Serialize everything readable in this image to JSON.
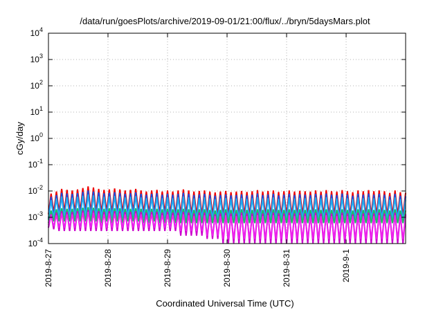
{
  "chart_data": {
    "type": "line",
    "title": "/data/run/goesPlots/archive/2019-09-01/21:00/flux/../bryn/5daysMars.plot",
    "xlabel": "Coordinated Universal Time (UTC)",
    "ylabel": "cGy/day",
    "y_scale": "log",
    "ylim": [
      0.0001,
      10000
    ],
    "y_ticks": [
      {
        "value": 0.0001,
        "base": "10",
        "exp": "-4"
      },
      {
        "value": 0.001,
        "base": "10",
        "exp": "-3"
      },
      {
        "value": 0.01,
        "base": "10",
        "exp": "-2"
      },
      {
        "value": 0.1,
        "base": "10",
        "exp": "-1"
      },
      {
        "value": 1,
        "base": "10",
        "exp": "0"
      },
      {
        "value": 10,
        "base": "10",
        "exp": "1"
      },
      {
        "value": 100,
        "base": "10",
        "exp": "2"
      },
      {
        "value": 1000,
        "base": "10",
        "exp": "3"
      },
      {
        "value": 10000,
        "base": "10",
        "exp": "4"
      }
    ],
    "xlim": [
      "2019-08-27T00:00",
      "2019-09-01T23:59"
    ],
    "x_ticks": [
      "2019-8-27",
      "2019-8-28",
      "2019-8-29",
      "2019-8-30",
      "2019-8-31",
      "2019-9-1"
    ],
    "grid": true,
    "legend": "none",
    "series_colors": [
      "#ee0000",
      "#1a4fe0",
      "#22aaee",
      "#22bb66",
      "#cc00cc",
      "#ee22ee"
    ],
    "series": [
      {
        "color": "#ee0000",
        "values": [
          0.0013,
          0.008,
          0.0015,
          0.0095,
          0.0016,
          0.012,
          0.0016,
          0.011,
          0.0017,
          0.0105,
          0.0016,
          0.0115,
          0.0017,
          0.013,
          0.0017,
          0.015,
          0.0016,
          0.0135,
          0.0016,
          0.012,
          0.0015,
          0.011,
          0.0016,
          0.0115,
          0.0015,
          0.0125,
          0.0016,
          0.0115,
          0.0015,
          0.0105,
          0.0016,
          0.011,
          0.0017,
          0.012,
          0.0016,
          0.0105,
          0.0015,
          0.0095,
          0.0015,
          0.0105,
          0.0016,
          0.011,
          0.0014,
          0.0095,
          0.0015,
          0.0105,
          0.0014,
          0.0095,
          0.0013,
          0.0105,
          0.0013,
          0.0115,
          0.0013,
          0.0105,
          0.0013,
          0.0095,
          0.0012,
          0.01,
          0.0012,
          0.0105,
          0.0012,
          0.0095,
          0.0012,
          0.0088,
          0.0012,
          0.0095,
          0.0012,
          0.01,
          0.0012,
          0.009,
          0.0012,
          0.0095,
          0.0012,
          0.01,
          0.0012,
          0.0092,
          0.0012,
          0.0098,
          0.0012,
          0.0108,
          0.0012,
          0.0095,
          0.0012,
          0.01,
          0.0012,
          0.0105,
          0.0012,
          0.0092,
          0.0012,
          0.0098,
          0.0012,
          0.0105,
          0.0012,
          0.0095,
          0.0012,
          0.0102,
          0.0012,
          0.0098,
          0.0012,
          0.0095,
          0.0012,
          0.0105,
          0.0012,
          0.0095,
          0.0012,
          0.0108,
          0.0012,
          0.0098,
          0.0012,
          0.0095,
          0.0012,
          0.0108,
          0.0012,
          0.0098,
          0.0012,
          0.009,
          0.0012,
          0.0105,
          0.0012,
          0.0098,
          0.0012,
          0.0108,
          0.0012,
          0.0098,
          0.0012,
          0.0105,
          0.0012,
          0.0098,
          0.0012,
          0.0085,
          0.0012,
          0.0105,
          0.0012,
          0.009,
          0.0011,
          0.0085
        ]
      },
      {
        "color": "#1a4fe0",
        "values": [
          0.0009,
          0.006,
          0.001,
          0.007,
          0.0011,
          0.0085,
          0.0011,
          0.008,
          0.0012,
          0.0078,
          0.0011,
          0.0082,
          0.0012,
          0.0092,
          0.0012,
          0.0105,
          0.0011,
          0.0095,
          0.0011,
          0.0088,
          0.001,
          0.0082,
          0.0011,
          0.0085,
          0.001,
          0.009,
          0.0011,
          0.0085,
          0.001,
          0.0078,
          0.0011,
          0.0082,
          0.0012,
          0.0088,
          0.0011,
          0.0078,
          0.001,
          0.0072,
          0.001,
          0.0078,
          0.0011,
          0.0082,
          0.001,
          0.0072,
          0.001,
          0.0078,
          0.001,
          0.0072,
          0.0009,
          0.0078,
          0.0009,
          0.0085,
          0.0009,
          0.0078,
          0.0009,
          0.007,
          0.0008,
          0.0074,
          0.0008,
          0.0078,
          0.0008,
          0.007,
          0.0008,
          0.0066,
          0.0008,
          0.007,
          0.0008,
          0.0074,
          0.0008,
          0.0068,
          0.0008,
          0.007,
          0.0008,
          0.0074,
          0.0008,
          0.0068,
          0.0008,
          0.0072,
          0.0008,
          0.008,
          0.0008,
          0.007,
          0.0008,
          0.0074,
          0.0008,
          0.0078,
          0.0008,
          0.0068,
          0.0008,
          0.0072,
          0.0008,
          0.0078,
          0.0008,
          0.007,
          0.0008,
          0.0075,
          0.0008,
          0.0072,
          0.0008,
          0.007,
          0.0008,
          0.0078,
          0.0008,
          0.007,
          0.0008,
          0.008,
          0.0008,
          0.0072,
          0.0008,
          0.007,
          0.0008,
          0.008,
          0.0008,
          0.0072,
          0.0008,
          0.0066,
          0.0008,
          0.0078,
          0.0008,
          0.0072,
          0.0008,
          0.008,
          0.0008,
          0.0072,
          0.0008,
          0.0078,
          0.0008,
          0.0072,
          0.0008,
          0.0063,
          0.0008,
          0.0078,
          0.0008,
          0.0066,
          0.0007,
          0.0063
        ]
      },
      {
        "color": "#22aaee",
        "values": [
          0.0008,
          0.0045,
          0.0009,
          0.0052,
          0.001,
          0.0062,
          0.001,
          0.0058,
          0.001,
          0.0056,
          0.001,
          0.006,
          0.001,
          0.0066,
          0.001,
          0.0074,
          0.001,
          0.0068,
          0.001,
          0.0063,
          0.0009,
          0.006,
          0.001,
          0.0062,
          0.0009,
          0.0065,
          0.001,
          0.0062,
          0.0009,
          0.0057,
          0.001,
          0.006,
          0.001,
          0.0064,
          0.001,
          0.0057,
          0.0009,
          0.0053,
          0.0009,
          0.0057,
          0.001,
          0.006,
          0.0009,
          0.0053,
          0.0009,
          0.0057,
          0.0009,
          0.0053,
          0.0008,
          0.0057,
          0.0008,
          0.0062,
          0.0008,
          0.0057,
          0.0008,
          0.0052,
          0.0008,
          0.0054,
          0.0008,
          0.0057,
          0.0008,
          0.0052,
          0.0008,
          0.0049,
          0.0008,
          0.0052,
          0.0008,
          0.0054,
          0.0008,
          0.005,
          0.0008,
          0.0052,
          0.0008,
          0.0054,
          0.0008,
          0.005,
          0.0008,
          0.0053,
          0.0008,
          0.0058,
          0.0008,
          0.0052,
          0.0008,
          0.0054,
          0.0008,
          0.0057,
          0.0008,
          0.005,
          0.0008,
          0.0053,
          0.0008,
          0.0057,
          0.0008,
          0.0052,
          0.0008,
          0.0055,
          0.0008,
          0.0053,
          0.0008,
          0.0052,
          0.0008,
          0.0057,
          0.0008,
          0.0052,
          0.0008,
          0.0058,
          0.0008,
          0.0053,
          0.0008,
          0.0052,
          0.0008,
          0.0058,
          0.0008,
          0.0053,
          0.0008,
          0.0049,
          0.0008,
          0.0057,
          0.0008,
          0.0053,
          0.0008,
          0.0058,
          0.0008,
          0.0053,
          0.0008,
          0.0057,
          0.0008,
          0.0053,
          0.0008,
          0.0047,
          0.0008,
          0.0057,
          0.0008,
          0.0049,
          0.0007,
          0.0047
        ]
      },
      {
        "color": "#22bb66",
        "values": [
          0.0006,
          0.0018,
          0.0007,
          0.002,
          0.0007,
          0.0022,
          0.0007,
          0.0021,
          0.0007,
          0.0021,
          0.0007,
          0.0022,
          0.0007,
          0.0023,
          0.0007,
          0.0024,
          0.0007,
          0.0023,
          0.0007,
          0.0022,
          0.0006,
          0.0021,
          0.0007,
          0.0022,
          0.0006,
          0.0022,
          0.0007,
          0.0022,
          0.0006,
          0.0021,
          0.0007,
          0.0021,
          0.0007,
          0.0022,
          0.0007,
          0.0021,
          0.0006,
          0.002,
          0.0006,
          0.0021,
          0.0007,
          0.0021,
          0.0006,
          0.002,
          0.0006,
          0.0021,
          0.0006,
          0.002,
          0.0006,
          0.002,
          0.0006,
          0.0021,
          0.0006,
          0.002,
          0.0006,
          0.0019,
          0.0006,
          0.002,
          0.0006,
          0.002,
          0.0006,
          0.0019,
          0.0006,
          0.0018,
          0.0006,
          0.0019,
          0.0006,
          0.002,
          0.0006,
          0.0019,
          0.0006,
          0.0019,
          0.0006,
          0.002,
          0.0006,
          0.0019,
          0.0006,
          0.0019,
          0.0006,
          0.002,
          0.0006,
          0.0019,
          0.0006,
          0.002,
          0.0006,
          0.002,
          0.0006,
          0.0019,
          0.0006,
          0.0019,
          0.0006,
          0.002,
          0.0006,
          0.0019,
          0.0006,
          0.002,
          0.0006,
          0.0019,
          0.0006,
          0.0019,
          0.0006,
          0.002,
          0.0006,
          0.0019,
          0.0006,
          0.002,
          0.0006,
          0.0019,
          0.0006,
          0.0019,
          0.0006,
          0.002,
          0.0006,
          0.0019,
          0.0006,
          0.0018,
          0.0006,
          0.002,
          0.0006,
          0.0019,
          0.0006,
          0.002,
          0.0006,
          0.0019,
          0.0006,
          0.002,
          0.0006,
          0.0019,
          0.0006,
          0.0018,
          0.0006,
          0.002,
          0.0006,
          0.0018,
          0.0006,
          0.0018
        ]
      },
      {
        "color": "#cc00cc",
        "values": [
          0.0004,
          0.0013,
          0.00035,
          0.0015,
          0.0003,
          0.0017,
          0.0003,
          0.0016,
          0.0003,
          0.0016,
          0.0003,
          0.0017,
          0.0003,
          0.0018,
          0.0003,
          0.0019,
          0.0003,
          0.0018,
          0.0003,
          0.0017,
          0.0003,
          0.0016,
          0.0003,
          0.0017,
          0.0003,
          0.0017,
          0.0003,
          0.0017,
          0.0003,
          0.0016,
          0.0003,
          0.0016,
          0.0003,
          0.0017,
          0.0003,
          0.0016,
          0.0003,
          0.0015,
          0.0003,
          0.0016,
          0.0003,
          0.0016,
          0.0003,
          0.0015,
          0.0003,
          0.0016,
          0.0003,
          0.0015,
          0.0003,
          0.0015,
          0.0002,
          0.0016,
          0.0002,
          0.0015,
          0.0002,
          0.0014,
          0.0002,
          0.0015,
          0.0002,
          0.0015,
          0.00015,
          0.0014,
          0.00015,
          0.0013,
          0.00015,
          0.0014,
          0.0001,
          0.0015,
          0.0001,
          0.0014,
          0.0001,
          0.0014,
          0.0001,
          0.0015,
          0.0001,
          0.0014,
          0.0001,
          0.0014,
          0.0001,
          0.0015,
          0.0001,
          0.0014,
          0.0001,
          0.0015,
          0.0001,
          0.0015,
          0.0001,
          0.0014,
          0.0001,
          0.0014,
          0.0001,
          0.0015,
          0.0001,
          0.0014,
          0.0001,
          0.0015,
          0.0001,
          0.0014,
          0.0001,
          0.0014,
          0.0001,
          0.0015,
          0.0001,
          0.0014,
          0.0001,
          0.0015,
          0.0001,
          0.0014,
          0.0001,
          0.0014,
          0.0001,
          0.0015,
          0.0001,
          0.0014,
          0.0001,
          0.0013,
          0.0001,
          0.0015,
          0.0001,
          0.0014,
          0.0001,
          0.0015,
          0.0001,
          0.0014,
          0.0001,
          0.0015,
          0.0001,
          0.0014,
          0.0001,
          0.0013,
          0.0001,
          0.0015,
          0.0001,
          0.0013,
          0.0001,
          0.0013
        ]
      },
      {
        "color": "#ee22ee",
        "values": [
          0.0005,
          0.0011,
          0.00045,
          0.0012,
          0.0004,
          0.0014,
          0.0004,
          0.0013,
          0.0004,
          0.0013,
          0.0004,
          0.0014,
          0.0004,
          0.0015,
          0.0004,
          0.0016,
          0.0004,
          0.0015,
          0.0004,
          0.0014,
          0.0004,
          0.0013,
          0.0004,
          0.0014,
          0.0004,
          0.0014,
          0.0004,
          0.0014,
          0.0004,
          0.0013,
          0.0004,
          0.0013,
          0.0004,
          0.0014,
          0.0004,
          0.0013,
          0.0004,
          0.0012,
          0.0004,
          0.0013,
          0.0004,
          0.0013,
          0.0004,
          0.0012,
          0.0004,
          0.0013,
          0.0004,
          0.0012,
          0.0004,
          0.0012,
          0.0003,
          0.0013,
          0.0003,
          0.0012,
          0.0003,
          0.0011,
          0.0003,
          0.0012,
          0.0003,
          0.0012,
          0.0002,
          0.0011,
          0.0002,
          0.0011,
          0.0002,
          0.0011,
          0.00015,
          0.0012,
          0.00015,
          0.0011,
          0.00015,
          0.0011,
          0.00015,
          0.0012,
          0.00015,
          0.0011,
          0.00015,
          0.0011,
          0.00015,
          0.0012,
          0.00015,
          0.0011,
          0.00015,
          0.0012,
          0.00015,
          0.0012,
          0.00015,
          0.0011,
          0.00015,
          0.0011,
          0.00015,
          0.0012,
          0.00015,
          0.0011,
          0.00015,
          0.0012,
          0.00015,
          0.0011,
          0.00015,
          0.0011,
          0.00015,
          0.0012,
          0.00015,
          0.0011,
          0.00015,
          0.0012,
          0.00015,
          0.0011,
          0.00015,
          0.0011,
          0.00015,
          0.0012,
          0.00015,
          0.0011,
          0.00015,
          0.0011,
          0.00015,
          0.0012,
          0.00015,
          0.0011,
          0.00015,
          0.0012,
          0.00015,
          0.0011,
          0.00015,
          0.0012,
          0.00015,
          0.0011,
          0.00015,
          0.0011,
          0.00015,
          0.0012,
          0.00015,
          0.0011,
          0.00015,
          0.0011
        ]
      }
    ]
  }
}
